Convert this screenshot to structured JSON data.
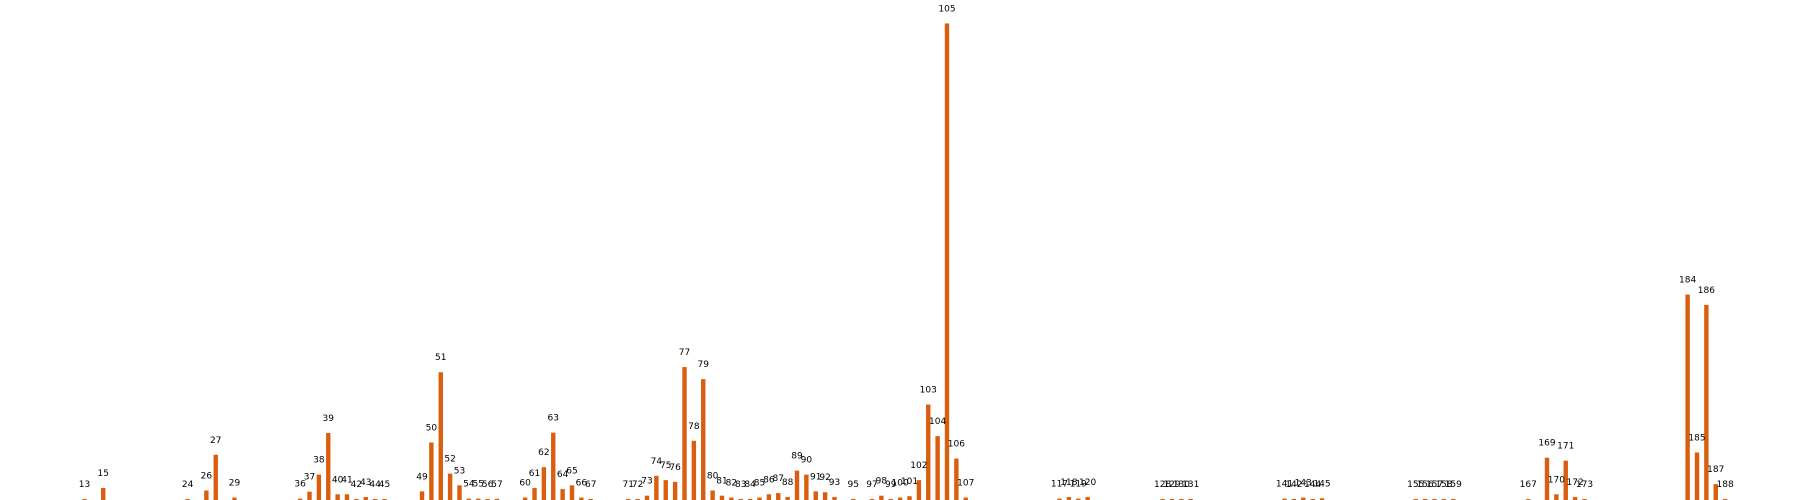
{
  "chart_data": {
    "type": "bar",
    "title": "",
    "xlabel": "",
    "ylabel": "",
    "ylim": [
      0,
      2780
    ],
    "grid": false,
    "legend": "none",
    "bar_color": "#d95f0e",
    "points": [
      {
        "label": "13",
        "x": 13,
        "value": 5
      },
      {
        "label": "15",
        "x": 15,
        "value": 70
      },
      {
        "label": "24",
        "x": 24,
        "value": 1
      },
      {
        "label": "26",
        "x": 26,
        "value": 55
      },
      {
        "label": "27",
        "x": 27,
        "value": 262
      },
      {
        "label": "29",
        "x": 29,
        "value": 14
      },
      {
        "label": "36",
        "x": 36,
        "value": 8
      },
      {
        "label": "37",
        "x": 37,
        "value": 48
      },
      {
        "label": "38",
        "x": 38,
        "value": 147
      },
      {
        "label": "39",
        "x": 39,
        "value": 388
      },
      {
        "label": "40",
        "x": 40,
        "value": 33
      },
      {
        "label": "41",
        "x": 41,
        "value": 33
      },
      {
        "label": "42",
        "x": 42,
        "value": 6
      },
      {
        "label": "43",
        "x": 43,
        "value": 17
      },
      {
        "label": "44",
        "x": 44,
        "value": 6
      },
      {
        "label": "45",
        "x": 45,
        "value": 1
      },
      {
        "label": "49",
        "x": 49,
        "value": 50
      },
      {
        "label": "50",
        "x": 50,
        "value": 333
      },
      {
        "label": "51",
        "x": 51,
        "value": 740
      },
      {
        "label": "52",
        "x": 52,
        "value": 153
      },
      {
        "label": "53",
        "x": 53,
        "value": 85
      },
      {
        "label": "54",
        "x": 54,
        "value": 8
      },
      {
        "label": "55",
        "x": 55,
        "value": 8
      },
      {
        "label": "56",
        "x": 56,
        "value": 1
      },
      {
        "label": "57",
        "x": 57,
        "value": 7
      },
      {
        "label": "60",
        "x": 60,
        "value": 14
      },
      {
        "label": "61",
        "x": 61,
        "value": 70
      },
      {
        "label": "62",
        "x": 62,
        "value": 190
      },
      {
        "label": "63",
        "x": 63,
        "value": 390
      },
      {
        "label": "64",
        "x": 64,
        "value": 63
      },
      {
        "label": "65",
        "x": 65,
        "value": 85
      },
      {
        "label": "66",
        "x": 66,
        "value": 14
      },
      {
        "label": "67",
        "x": 67,
        "value": 1
      },
      {
        "label": "71",
        "x": 71,
        "value": 6
      },
      {
        "label": "72",
        "x": 72,
        "value": 6
      },
      {
        "label": "73",
        "x": 73,
        "value": 25
      },
      {
        "label": "74",
        "x": 74,
        "value": 140
      },
      {
        "label": "75",
        "x": 75,
        "value": 115
      },
      {
        "label": "76",
        "x": 76,
        "value": 105
      },
      {
        "label": "77",
        "x": 77,
        "value": 770
      },
      {
        "label": "78",
        "x": 78,
        "value": 343
      },
      {
        "label": "79",
        "x": 79,
        "value": 700
      },
      {
        "label": "80",
        "x": 80,
        "value": 55
      },
      {
        "label": "81",
        "x": 81,
        "value": 25
      },
      {
        "label": "82",
        "x": 82,
        "value": 14
      },
      {
        "label": "83",
        "x": 83,
        "value": 6
      },
      {
        "label": "84",
        "x": 84,
        "value": 6
      },
      {
        "label": "85",
        "x": 85,
        "value": 14
      },
      {
        "label": "86",
        "x": 86,
        "value": 33
      },
      {
        "label": "87",
        "x": 87,
        "value": 40
      },
      {
        "label": "88",
        "x": 88,
        "value": 17
      },
      {
        "label": "89",
        "x": 89,
        "value": 170
      },
      {
        "label": "90",
        "x": 90,
        "value": 147
      },
      {
        "label": "91",
        "x": 91,
        "value": 50
      },
      {
        "label": "92",
        "x": 92,
        "value": 45
      },
      {
        "label": "93",
        "x": 93,
        "value": 17
      },
      {
        "label": "95",
        "x": 95,
        "value": 6
      },
      {
        "label": "97",
        "x": 97,
        "value": 6
      },
      {
        "label": "98",
        "x": 98,
        "value": 25
      },
      {
        "label": "99",
        "x": 99,
        "value": 6
      },
      {
        "label": "100",
        "x": 100,
        "value": 14
      },
      {
        "label": "101",
        "x": 101,
        "value": 22
      },
      {
        "label": "102",
        "x": 102,
        "value": 115
      },
      {
        "label": "103",
        "x": 103,
        "value": 553
      },
      {
        "label": "104",
        "x": 104,
        "value": 370
      },
      {
        "label": "105",
        "x": 105,
        "value": 2760
      },
      {
        "label": "106",
        "x": 106,
        "value": 240
      },
      {
        "label": "107",
        "x": 107,
        "value": 14
      },
      {
        "label": "117",
        "x": 117,
        "value": 8
      },
      {
        "label": "118",
        "x": 118,
        "value": 17
      },
      {
        "label": "119",
        "x": 119,
        "value": 8
      },
      {
        "label": "120",
        "x": 120,
        "value": 17
      },
      {
        "label": "128",
        "x": 128,
        "value": 1
      },
      {
        "label": "129",
        "x": 129,
        "value": 1
      },
      {
        "label": "130",
        "x": 130,
        "value": 1
      },
      {
        "label": "131",
        "x": 131,
        "value": 6
      },
      {
        "label": "141",
        "x": 141,
        "value": 8
      },
      {
        "label": "142",
        "x": 142,
        "value": 1
      },
      {
        "label": "143",
        "x": 143,
        "value": 14
      },
      {
        "label": "144",
        "x": 144,
        "value": 1
      },
      {
        "label": "145",
        "x": 145,
        "value": 10
      },
      {
        "label": "155",
        "x": 155,
        "value": 6
      },
      {
        "label": "156",
        "x": 156,
        "value": 6
      },
      {
        "label": "157",
        "x": 157,
        "value": 6
      },
      {
        "label": "158",
        "x": 158,
        "value": 6
      },
      {
        "label": "159",
        "x": 159,
        "value": 1
      },
      {
        "label": "167",
        "x": 167,
        "value": 1
      },
      {
        "label": "169",
        "x": 169,
        "value": 245
      },
      {
        "label": "170",
        "x": 170,
        "value": 33
      },
      {
        "label": "171",
        "x": 171,
        "value": 228
      },
      {
        "label": "172",
        "x": 172,
        "value": 17
      },
      {
        "label": "173",
        "x": 173,
        "value": 1
      },
      {
        "label": "184",
        "x": 184,
        "value": 1190
      },
      {
        "label": "185",
        "x": 185,
        "value": 275
      },
      {
        "label": "186",
        "x": 186,
        "value": 1130
      },
      {
        "label": "187",
        "x": 187,
        "value": 92
      },
      {
        "label": "188",
        "x": 188,
        "value": 6
      }
    ]
  }
}
